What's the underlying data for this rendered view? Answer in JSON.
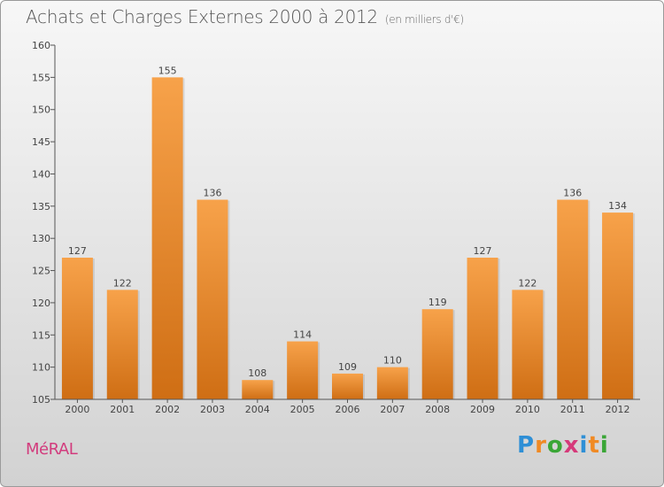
{
  "header": {
    "title": "Achats et Charges Externes 2000 à 2012",
    "unit": "(en milliers d'€)"
  },
  "footer": {
    "city": "MéRAL",
    "logo": {
      "letters": [
        "P",
        "r",
        "o",
        "x",
        "i",
        "t",
        "i"
      ],
      "colors": [
        "#2e8fd6",
        "#f08a24",
        "#3aa636",
        "#d63a7a",
        "#2e8fd6",
        "#f08a24",
        "#3aa636"
      ]
    }
  },
  "colors": {
    "bar_light": "#f7a24a",
    "bar_dark": "#cf6e14",
    "title": "#555555",
    "city": "#d23c7d"
  },
  "chart_data": {
    "type": "bar",
    "title": "Achats et Charges Externes 2000 à 2012",
    "subtitle": "(en milliers d'€)",
    "categories": [
      "2000",
      "2001",
      "2002",
      "2003",
      "2004",
      "2005",
      "2006",
      "2007",
      "2008",
      "2009",
      "2010",
      "2011",
      "2012"
    ],
    "values": [
      127,
      122,
      155,
      136,
      108,
      114,
      109,
      110,
      119,
      127,
      122,
      136,
      134
    ],
    "ylim": [
      105,
      160
    ],
    "yticks": [
      105,
      110,
      115,
      120,
      125,
      130,
      135,
      140,
      145,
      150,
      155,
      160
    ],
    "grid": false,
    "data_labels": true
  }
}
